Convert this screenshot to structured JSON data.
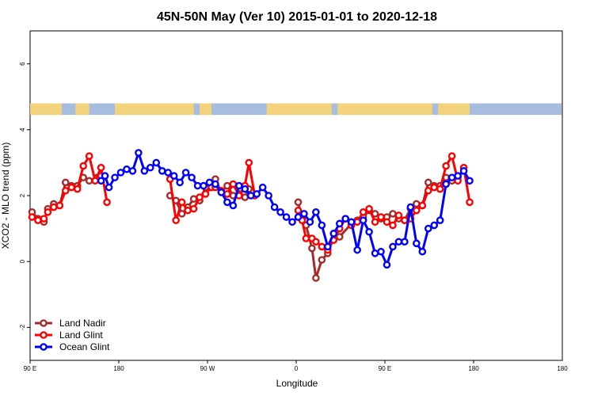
{
  "chart_data": {
    "type": "line",
    "title": "45N-50N May (Ver 10)   2015-01-01 to 2020-12-18",
    "xlabel": "Longitude",
    "ylabel": "XCO2 - MLO trend (ppm)",
    "xlim": [
      -90,
      180
    ],
    "ylim": [
      -3,
      7
    ],
    "x_ticks": [
      {
        "value": -90,
        "label": "90 E"
      },
      {
        "value": -45,
        "label": "180"
      },
      {
        "value": 0,
        "label": "90 W"
      },
      {
        "value": 45,
        "label": "0"
      },
      {
        "value": 90,
        "label": "90 E"
      },
      {
        "value": 135,
        "label": "180"
      }
    ],
    "y_ticks": [
      -2,
      0,
      2,
      4,
      6
    ],
    "land_strip_colors": {
      "land": "#f2d27a",
      "ocean": "#a7bde0"
    },
    "legend_position": "bottom-left",
    "series": [
      {
        "name": "Land Nadir",
        "color": "#a52a2a",
        "x": [
          -89,
          -86,
          -83,
          -81,
          -78,
          -75,
          -72,
          -69,
          -66,
          -63,
          -60,
          -56,
          -54,
          -19,
          -16,
          -13,
          -10,
          -7,
          -4,
          -1,
          2,
          4,
          7,
          10,
          13,
          16,
          19,
          21,
          46,
          48,
          50,
          53,
          55,
          58,
          61,
          64,
          67,
          73,
          76,
          79,
          82,
          85,
          88,
          91,
          94,
          97,
          100,
          103,
          106,
          109,
          112,
          115,
          118,
          121,
          124,
          127
        ],
        "y": [
          1.5,
          1.3,
          1.2,
          1.6,
          1.75,
          1.7,
          2.4,
          2.3,
          2.3,
          2.55,
          2.45,
          2.55,
          2.6,
          2.0,
          1.85,
          1.45,
          1.65,
          1.9,
          1.85,
          2.25,
          2.35,
          2.5,
          2.1,
          2.3,
          2.0,
          2.05,
          1.95,
          2.2,
          1.8,
          1.3,
          1.1,
          0.4,
          -0.5,
          0.05,
          0.25,
          0.85,
          0.75,
          1.15,
          1.25,
          1.35,
          1.55,
          1.45,
          1.3,
          1.35,
          1.45,
          1.3,
          1.25,
          1.6,
          1.75,
          1.7,
          2.4,
          2.3,
          2.3,
          2.55,
          2.45,
          2.55
        ]
      },
      {
        "name": "Land Glint",
        "color": "#ff0000",
        "x": [
          -89,
          -86,
          -83,
          -81,
          -78,
          -75,
          -72,
          -69,
          -66,
          -63,
          -60,
          -57,
          -54,
          -51,
          -19,
          -16,
          -13,
          -10,
          -7,
          -4,
          -1,
          2,
          4,
          7,
          10,
          13,
          16,
          19,
          21,
          24,
          46,
          48,
          50,
          53,
          55,
          58,
          61,
          64,
          67,
          70,
          73,
          76,
          79,
          82,
          85,
          88,
          91,
          94,
          97,
          100,
          103,
          106,
          109,
          112,
          115,
          118,
          121,
          124,
          127,
          130,
          133
        ],
        "y": [
          1.35,
          1.25,
          1.3,
          1.5,
          1.65,
          1.7,
          2.15,
          2.25,
          2.2,
          2.9,
          3.2,
          2.45,
          2.85,
          1.8,
          2.5,
          1.25,
          1.8,
          1.55,
          1.6,
          1.95,
          2.05,
          2.25,
          2.25,
          2.15,
          2.05,
          2.35,
          2.0,
          2.3,
          3.0,
          2.0,
          1.55,
          1.25,
          0.7,
          0.7,
          0.6,
          0.45,
          0.35,
          0.65,
          1.0,
          1.3,
          1.1,
          1.2,
          1.5,
          1.6,
          1.2,
          1.35,
          1.2,
          1.1,
          1.4,
          1.25,
          1.3,
          1.55,
          1.7,
          2.15,
          2.25,
          2.2,
          2.9,
          3.2,
          2.45,
          2.85,
          1.8
        ]
      },
      {
        "name": "Ocean Glint",
        "color": "#0000ff",
        "x": [
          -54,
          -52,
          -50,
          -47,
          -44,
          -41,
          -38,
          -35,
          -32,
          -29,
          -26,
          -23,
          -20,
          -17,
          -14,
          -11,
          -8,
          -5,
          -2,
          1,
          4,
          7,
          10,
          13,
          16,
          19,
          22,
          25,
          28,
          31,
          34,
          37,
          40,
          43,
          46,
          49,
          52,
          55,
          58,
          61,
          64,
          67,
          70,
          73,
          76,
          79,
          82,
          85,
          88,
          91,
          94,
          97,
          100,
          103,
          106,
          109,
          112,
          115,
          118,
          121,
          124,
          127,
          130,
          133
        ],
        "y": [
          2.45,
          2.6,
          2.25,
          2.55,
          2.7,
          2.8,
          2.75,
          3.3,
          2.75,
          2.85,
          3.0,
          2.75,
          2.7,
          2.6,
          2.4,
          2.7,
          2.55,
          2.3,
          2.3,
          2.4,
          2.35,
          2.1,
          1.8,
          1.7,
          2.3,
          2.2,
          2.0,
          2.05,
          2.25,
          2.0,
          1.65,
          1.5,
          1.35,
          1.2,
          1.35,
          1.45,
          1.2,
          1.5,
          1.1,
          0.45,
          0.85,
          1.15,
          1.3,
          1.2,
          0.35,
          1.25,
          0.9,
          0.25,
          0.3,
          -0.1,
          0.45,
          0.6,
          0.6,
          1.65,
          0.55,
          0.3,
          1.0,
          1.1,
          1.25,
          2.35,
          2.55,
          2.6,
          2.75,
          2.45
        ]
      }
    ]
  }
}
